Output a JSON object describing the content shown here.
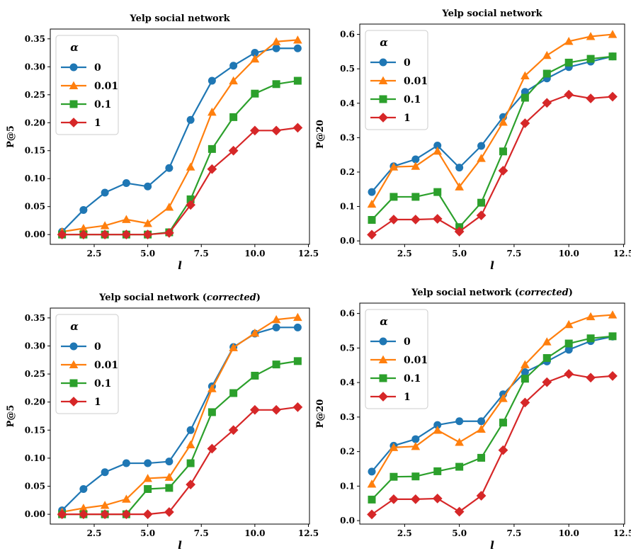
{
  "chart_data": [
    {
      "type": "line",
      "title": "Yelp social network",
      "title_suffix": "",
      "xlabel": "l",
      "ylabel": "P@5",
      "xlim": [
        0.45,
        12.55
      ],
      "ylim": [
        -0.0175,
        0.3675
      ],
      "xticks": [
        "2.5",
        "5.0",
        "7.5",
        "10.0",
        "12.5"
      ],
      "yticks": [
        "0.00",
        "0.05",
        "0.10",
        "0.15",
        "0.20",
        "0.25",
        "0.30",
        "0.35"
      ],
      "legend_title": "α",
      "legend_position": "upper left",
      "x": [
        1,
        2,
        3,
        4,
        5,
        6,
        7,
        8,
        9,
        10,
        11,
        12
      ],
      "series": [
        {
          "name": "0",
          "color": "#1f77b4",
          "marker": "circle",
          "values": [
            0.005,
            0.044,
            0.075,
            0.092,
            0.086,
            0.119,
            0.205,
            0.275,
            0.302,
            0.325,
            0.333,
            0.333
          ]
        },
        {
          "name": "0.01",
          "color": "#ff7f0e",
          "marker": "triangle",
          "values": [
            0.005,
            0.011,
            0.016,
            0.027,
            0.02,
            0.049,
            0.121,
            0.219,
            0.275,
            0.314,
            0.345,
            0.348
          ]
        },
        {
          "name": "0.1",
          "color": "#2ca02c",
          "marker": "square",
          "values": [
            0.0,
            0.0,
            0.0,
            0.0,
            0.0,
            0.004,
            0.063,
            0.153,
            0.21,
            0.252,
            0.269,
            0.275
          ]
        },
        {
          "name": "1",
          "color": "#d62728",
          "marker": "diamond",
          "values": [
            0.0,
            0.0,
            0.0,
            0.0,
            0.0,
            0.003,
            0.053,
            0.117,
            0.15,
            0.186,
            0.186,
            0.191
          ]
        }
      ]
    },
    {
      "type": "line",
      "title": "Yelp social network",
      "title_suffix": "",
      "xlabel": "l",
      "ylabel": "P@20",
      "xlim": [
        0.45,
        12.55
      ],
      "ylim": [
        -0.01,
        0.63
      ],
      "xticks": [
        "2.5",
        "5.0",
        "7.5",
        "10.0",
        "12.5"
      ],
      "yticks": [
        "0.0",
        "0.1",
        "0.2",
        "0.3",
        "0.4",
        "0.5",
        "0.6"
      ],
      "legend_title": "α",
      "legend_position": "upper left",
      "x": [
        1,
        2,
        3,
        4,
        5,
        6,
        7,
        8,
        9,
        10,
        11,
        12
      ],
      "series": [
        {
          "name": "0",
          "color": "#1f77b4",
          "marker": "circle",
          "values": [
            0.142,
            0.217,
            0.237,
            0.277,
            0.213,
            0.276,
            0.36,
            0.433,
            0.472,
            0.505,
            0.521,
            0.536
          ]
        },
        {
          "name": "0.01",
          "color": "#ff7f0e",
          "marker": "triangle",
          "values": [
            0.107,
            0.215,
            0.217,
            0.261,
            0.157,
            0.24,
            0.345,
            0.48,
            0.539,
            0.58,
            0.594,
            0.6
          ]
        },
        {
          "name": "0.1",
          "color": "#2ca02c",
          "marker": "square",
          "values": [
            0.061,
            0.128,
            0.128,
            0.142,
            0.04,
            0.111,
            0.26,
            0.416,
            0.486,
            0.518,
            0.529,
            0.536
          ]
        },
        {
          "name": "1",
          "color": "#d62728",
          "marker": "diamond",
          "values": [
            0.018,
            0.062,
            0.062,
            0.064,
            0.027,
            0.074,
            0.204,
            0.342,
            0.401,
            0.425,
            0.414,
            0.419
          ]
        }
      ]
    },
    {
      "type": "line",
      "title": "Yelp social network (",
      "title_suffix": "corrected",
      "title_end": ")",
      "xlabel": "l",
      "ylabel": "P@5",
      "xlim": [
        0.45,
        12.55
      ],
      "ylim": [
        -0.0175,
        0.3675
      ],
      "xticks": [
        "2.5",
        "5.0",
        "7.5",
        "10.0",
        "12.5"
      ],
      "yticks": [
        "0.00",
        "0.05",
        "0.10",
        "0.15",
        "0.20",
        "0.25",
        "0.30",
        "0.35"
      ],
      "legend_title": "α",
      "legend_position": "upper left",
      "x": [
        1,
        2,
        3,
        4,
        5,
        6,
        7,
        8,
        9,
        10,
        11,
        12
      ],
      "series": [
        {
          "name": "0",
          "color": "#1f77b4",
          "marker": "circle",
          "values": [
            0.007,
            0.045,
            0.075,
            0.091,
            0.091,
            0.094,
            0.15,
            0.228,
            0.298,
            0.322,
            0.333,
            0.333
          ]
        },
        {
          "name": "0.01",
          "color": "#ff7f0e",
          "marker": "triangle",
          "values": [
            0.004,
            0.011,
            0.016,
            0.027,
            0.064,
            0.066,
            0.124,
            0.224,
            0.297,
            0.323,
            0.347,
            0.351
          ]
        },
        {
          "name": "0.1",
          "color": "#2ca02c",
          "marker": "square",
          "values": [
            0.0,
            0.0,
            0.0,
            0.0,
            0.045,
            0.047,
            0.091,
            0.182,
            0.216,
            0.247,
            0.267,
            0.273
          ]
        },
        {
          "name": "1",
          "color": "#d62728",
          "marker": "diamond",
          "values": [
            0.0,
            0.0,
            0.0,
            0.0,
            0.0,
            0.004,
            0.053,
            0.117,
            0.15,
            0.186,
            0.186,
            0.191
          ]
        }
      ]
    },
    {
      "type": "line",
      "title": "Yelp social network (",
      "title_suffix": "corrected",
      "title_end": ")",
      "xlabel": "l",
      "ylabel": "P@20",
      "xlim": [
        0.45,
        12.55
      ],
      "ylim": [
        -0.01,
        0.63
      ],
      "xticks": [
        "2.5",
        "5.0",
        "7.5",
        "10.0",
        "12.5"
      ],
      "yticks": [
        "0.0",
        "0.1",
        "0.2",
        "0.3",
        "0.4",
        "0.5",
        "0.6"
      ],
      "legend_title": "α",
      "legend_position": "upper left",
      "x": [
        1,
        2,
        3,
        4,
        5,
        6,
        7,
        8,
        9,
        10,
        11,
        12
      ],
      "series": [
        {
          "name": "0",
          "color": "#1f77b4",
          "marker": "circle",
          "values": [
            0.142,
            0.217,
            0.236,
            0.277,
            0.288,
            0.288,
            0.366,
            0.43,
            0.461,
            0.495,
            0.52,
            0.533
          ]
        },
        {
          "name": "0.01",
          "color": "#ff7f0e",
          "marker": "triangle",
          "values": [
            0.106,
            0.212,
            0.215,
            0.262,
            0.227,
            0.265,
            0.354,
            0.452,
            0.518,
            0.568,
            0.591,
            0.596
          ]
        },
        {
          "name": "0.1",
          "color": "#2ca02c",
          "marker": "square",
          "values": [
            0.061,
            0.127,
            0.128,
            0.143,
            0.156,
            0.182,
            0.284,
            0.411,
            0.471,
            0.513,
            0.528,
            0.534
          ]
        },
        {
          "name": "1",
          "color": "#d62728",
          "marker": "diamond",
          "values": [
            0.018,
            0.062,
            0.062,
            0.064,
            0.026,
            0.072,
            0.204,
            0.342,
            0.401,
            0.425,
            0.414,
            0.419
          ]
        }
      ]
    }
  ]
}
